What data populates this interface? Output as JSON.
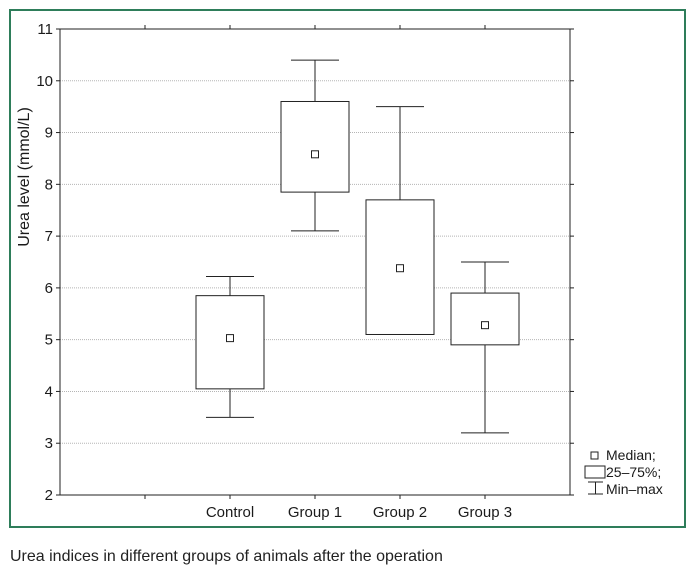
{
  "caption": "Urea indices in different groups of animals after the operation",
  "chart_data": {
    "type": "boxplot",
    "title": "",
    "xlabel": "",
    "ylabel": "Urea level (mmol/L)",
    "ylim": [
      2,
      11
    ],
    "yticks": [
      2,
      3,
      4,
      5,
      6,
      7,
      8,
      9,
      10,
      11
    ],
    "grid": true,
    "legend_position": "bottom-right outside",
    "categories": [
      "Control",
      "Group 1",
      "Group 2",
      "Group 3"
    ],
    "boxes": [
      {
        "label": "Control",
        "min": 3.5,
        "q1": 4.05,
        "median": 5.03,
        "q3": 5.85,
        "max": 6.22
      },
      {
        "label": "Group 1",
        "min": 7.1,
        "q1": 7.85,
        "median": 8.58,
        "q3": 9.6,
        "max": 10.4
      },
      {
        "label": "Group 2",
        "min": 5.1,
        "q1": 5.1,
        "median": 6.38,
        "q3": 7.7,
        "max": 9.5
      },
      {
        "label": "Group 3",
        "min": 3.2,
        "q1": 4.9,
        "median": 5.28,
        "q3": 5.9,
        "max": 6.5
      }
    ],
    "legend": [
      {
        "symbol": "square-marker",
        "label": "Median;"
      },
      {
        "symbol": "box",
        "label": "25–75%;"
      },
      {
        "symbol": "whisker",
        "label": "Min–max"
      }
    ]
  }
}
